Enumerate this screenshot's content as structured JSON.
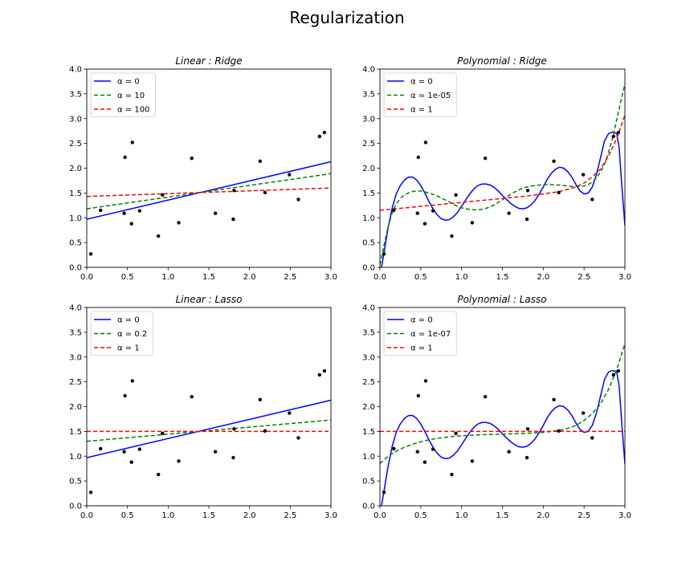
{
  "figure_title": "Regularization",
  "chart_data": [
    {
      "type": "line",
      "title": "Linear : Ridge",
      "xlim": [
        0,
        3
      ],
      "ylim": [
        0,
        4
      ],
      "xticks": [
        "0.0",
        "0.5",
        "1.0",
        "1.5",
        "2.0",
        "2.5",
        "3.0"
      ],
      "yticks": [
        "0.0",
        "0.5",
        "1.0",
        "1.5",
        "2.0",
        "2.5",
        "3.0",
        "3.5",
        "4.0"
      ],
      "grid": false,
      "legend_position": "top-left",
      "scatter": {
        "x": [
          0.05,
          0.17,
          0.46,
          0.47,
          0.55,
          0.56,
          0.65,
          0.88,
          0.93,
          1.13,
          1.29,
          1.58,
          1.8,
          1.81,
          2.13,
          2.19,
          2.49,
          2.6,
          2.86,
          2.92
        ],
        "y": [
          0.27,
          1.15,
          1.09,
          2.22,
          0.88,
          2.52,
          1.14,
          0.63,
          1.46,
          0.9,
          2.2,
          1.09,
          0.97,
          1.55,
          2.14,
          1.51,
          1.87,
          1.37,
          2.64,
          2.72
        ]
      },
      "series": [
        {
          "name": "α = 0",
          "color": "#0000ff",
          "dash": false,
          "x": [
            0,
            3
          ],
          "y": [
            0.97,
            2.13
          ]
        },
        {
          "name": "α = 10",
          "color": "#008000",
          "dash": true,
          "x": [
            0,
            3
          ],
          "y": [
            1.18,
            1.89
          ]
        },
        {
          "name": "α = 100",
          "color": "#ff0000",
          "dash": true,
          "x": [
            0,
            3
          ],
          "y": [
            1.43,
            1.6
          ]
        }
      ]
    },
    {
      "type": "line",
      "title": "Polynomial : Ridge",
      "xlim": [
        0,
        3
      ],
      "ylim": [
        0,
        4
      ],
      "xticks": [
        "0.0",
        "0.5",
        "1.0",
        "1.5",
        "2.0",
        "2.5",
        "3.0"
      ],
      "yticks": [
        "0.0",
        "0.5",
        "1.0",
        "1.5",
        "2.0",
        "2.5",
        "3.0",
        "3.5",
        "4.0"
      ],
      "grid": false,
      "legend_position": "top-left",
      "scatter": {
        "x": [
          0.05,
          0.17,
          0.46,
          0.47,
          0.55,
          0.56,
          0.65,
          0.88,
          0.93,
          1.13,
          1.29,
          1.58,
          1.8,
          1.81,
          2.13,
          2.19,
          2.49,
          2.6,
          2.86,
          2.92
        ],
        "y": [
          0.27,
          1.15,
          1.09,
          2.22,
          0.88,
          2.52,
          1.14,
          0.63,
          1.46,
          0.9,
          2.2,
          1.09,
          0.97,
          1.55,
          2.14,
          1.51,
          1.87,
          1.37,
          2.64,
          2.72
        ]
      },
      "series": [
        {
          "name": "α = 0",
          "color": "#0000ff",
          "dash": false,
          "x": [
            0.0,
            0.05,
            0.1,
            0.15,
            0.2,
            0.25,
            0.3,
            0.35,
            0.4,
            0.45,
            0.5,
            0.55,
            0.6,
            0.65,
            0.7,
            0.75,
            0.8,
            0.85,
            0.9,
            0.95,
            1.0,
            1.05,
            1.1,
            1.15,
            1.2,
            1.25,
            1.3,
            1.35,
            1.4,
            1.45,
            1.5,
            1.55,
            1.6,
            1.65,
            1.7,
            1.75,
            1.8,
            1.85,
            1.9,
            1.95,
            2.0,
            2.05,
            2.1,
            2.15,
            2.2,
            2.25,
            2.3,
            2.35,
            2.4,
            2.45,
            2.5,
            2.55,
            2.6,
            2.65,
            2.7,
            2.75,
            2.8,
            2.85,
            2.9,
            2.93,
            2.96,
            3.0
          ],
          "y": [
            -0.2,
            0.3,
            0.8,
            1.2,
            1.48,
            1.65,
            1.76,
            1.82,
            1.82,
            1.76,
            1.65,
            1.5,
            1.33,
            1.18,
            1.06,
            0.98,
            0.95,
            0.96,
            1.02,
            1.11,
            1.23,
            1.36,
            1.48,
            1.58,
            1.65,
            1.68,
            1.68,
            1.66,
            1.61,
            1.54,
            1.45,
            1.37,
            1.29,
            1.23,
            1.19,
            1.18,
            1.2,
            1.26,
            1.35,
            1.48,
            1.62,
            1.78,
            1.9,
            1.98,
            2.02,
            2.0,
            1.93,
            1.82,
            1.67,
            1.54,
            1.48,
            1.5,
            1.62,
            1.86,
            2.2,
            2.55,
            2.7,
            2.73,
            2.7,
            2.4,
            1.7,
            0.84
          ]
        },
        {
          "name": "α = 1e-05",
          "color": "#008000",
          "dash": true,
          "x": [
            0.0,
            0.05,
            0.1,
            0.15,
            0.2,
            0.25,
            0.3,
            0.35,
            0.4,
            0.45,
            0.5,
            0.55,
            0.6,
            0.65,
            0.7,
            0.75,
            0.8,
            0.85,
            0.9,
            0.95,
            1.0,
            1.05,
            1.1,
            1.15,
            1.2,
            1.25,
            1.3,
            1.35,
            1.4,
            1.45,
            1.5,
            1.55,
            1.6,
            1.65,
            1.7,
            1.75,
            1.8,
            1.85,
            1.9,
            1.95,
            2.0,
            2.05,
            2.1,
            2.15,
            2.2,
            2.25,
            2.3,
            2.35,
            2.4,
            2.45,
            2.5,
            2.55,
            2.6,
            2.65,
            2.7,
            2.75,
            2.8,
            2.85,
            2.9,
            2.95,
            3.0
          ],
          "y": [
            0.05,
            0.45,
            0.82,
            1.1,
            1.28,
            1.39,
            1.46,
            1.5,
            1.53,
            1.54,
            1.54,
            1.52,
            1.5,
            1.47,
            1.44,
            1.4,
            1.36,
            1.32,
            1.27,
            1.23,
            1.2,
            1.18,
            1.17,
            1.16,
            1.16,
            1.17,
            1.19,
            1.22,
            1.26,
            1.31,
            1.36,
            1.42,
            1.47,
            1.52,
            1.56,
            1.6,
            1.62,
            1.64,
            1.65,
            1.66,
            1.67,
            1.67,
            1.67,
            1.66,
            1.66,
            1.65,
            1.64,
            1.63,
            1.63,
            1.63,
            1.64,
            1.67,
            1.72,
            1.8,
            1.92,
            2.08,
            2.32,
            2.62,
            2.98,
            3.35,
            3.7
          ]
        },
        {
          "name": "α = 1",
          "color": "#ff0000",
          "dash": true,
          "x": [
            0.0,
            0.25,
            0.5,
            0.75,
            1.0,
            1.25,
            1.5,
            1.75,
            2.0,
            2.2,
            2.4,
            2.5,
            2.6,
            2.7,
            2.8,
            2.9,
            3.0
          ],
          "y": [
            1.15,
            1.19,
            1.23,
            1.27,
            1.31,
            1.35,
            1.39,
            1.43,
            1.48,
            1.53,
            1.62,
            1.7,
            1.82,
            1.98,
            2.25,
            2.6,
            3.07
          ]
        }
      ]
    },
    {
      "type": "line",
      "title": "Linear : Lasso",
      "xlim": [
        0,
        3
      ],
      "ylim": [
        0,
        4
      ],
      "xticks": [
        "0.0",
        "0.5",
        "1.0",
        "1.5",
        "2.0",
        "2.5",
        "3.0"
      ],
      "yticks": [
        "0.0",
        "0.5",
        "1.0",
        "1.5",
        "2.0",
        "2.5",
        "3.0",
        "3.5",
        "4.0"
      ],
      "grid": false,
      "legend_position": "top-left",
      "scatter": {
        "x": [
          0.05,
          0.17,
          0.46,
          0.47,
          0.55,
          0.56,
          0.65,
          0.88,
          0.93,
          1.13,
          1.29,
          1.58,
          1.8,
          1.81,
          2.13,
          2.19,
          2.49,
          2.6,
          2.86,
          2.92
        ],
        "y": [
          0.27,
          1.15,
          1.09,
          2.22,
          0.88,
          2.52,
          1.14,
          0.63,
          1.46,
          0.9,
          2.2,
          1.09,
          0.97,
          1.55,
          2.14,
          1.51,
          1.87,
          1.37,
          2.64,
          2.72
        ]
      },
      "series": [
        {
          "name": "α = 0",
          "color": "#0000ff",
          "dash": false,
          "x": [
            0,
            3
          ],
          "y": [
            0.97,
            2.13
          ]
        },
        {
          "name": "α = 0.2",
          "color": "#008000",
          "dash": true,
          "x": [
            0,
            3
          ],
          "y": [
            1.3,
            1.73
          ]
        },
        {
          "name": "α = 1",
          "color": "#ff0000",
          "dash": true,
          "x": [
            0,
            3
          ],
          "y": [
            1.5,
            1.5
          ]
        }
      ]
    },
    {
      "type": "line",
      "title": "Polynomial : Lasso",
      "xlim": [
        0,
        3
      ],
      "ylim": [
        0,
        4
      ],
      "xticks": [
        "0.0",
        "0.5",
        "1.0",
        "1.5",
        "2.0",
        "2.5",
        "3.0"
      ],
      "yticks": [
        "0.0",
        "0.5",
        "1.0",
        "1.5",
        "2.0",
        "2.5",
        "3.0",
        "3.5",
        "4.0"
      ],
      "grid": false,
      "legend_position": "top-left",
      "scatter": {
        "x": [
          0.05,
          0.17,
          0.46,
          0.47,
          0.55,
          0.56,
          0.65,
          0.88,
          0.93,
          1.13,
          1.29,
          1.58,
          1.8,
          1.81,
          2.13,
          2.19,
          2.49,
          2.6,
          2.86,
          2.92
        ],
        "y": [
          0.27,
          1.15,
          1.09,
          2.22,
          0.88,
          2.52,
          1.14,
          0.63,
          1.46,
          0.9,
          2.2,
          1.09,
          0.97,
          1.55,
          2.14,
          1.51,
          1.87,
          1.37,
          2.64,
          2.72
        ]
      },
      "series": [
        {
          "name": "α = 0",
          "color": "#0000ff",
          "dash": false,
          "x": [
            0.0,
            0.05,
            0.1,
            0.15,
            0.2,
            0.25,
            0.3,
            0.35,
            0.4,
            0.45,
            0.5,
            0.55,
            0.6,
            0.65,
            0.7,
            0.75,
            0.8,
            0.85,
            0.9,
            0.95,
            1.0,
            1.05,
            1.1,
            1.15,
            1.2,
            1.25,
            1.3,
            1.35,
            1.4,
            1.45,
            1.5,
            1.55,
            1.6,
            1.65,
            1.7,
            1.75,
            1.8,
            1.85,
            1.9,
            1.95,
            2.0,
            2.05,
            2.1,
            2.15,
            2.2,
            2.25,
            2.3,
            2.35,
            2.4,
            2.45,
            2.5,
            2.55,
            2.6,
            2.65,
            2.7,
            2.75,
            2.8,
            2.85,
            2.9,
            2.93,
            2.96,
            3.0
          ],
          "y": [
            -0.2,
            0.3,
            0.8,
            1.2,
            1.48,
            1.65,
            1.76,
            1.82,
            1.82,
            1.76,
            1.65,
            1.5,
            1.33,
            1.18,
            1.06,
            0.98,
            0.95,
            0.96,
            1.02,
            1.11,
            1.23,
            1.36,
            1.48,
            1.58,
            1.65,
            1.68,
            1.68,
            1.66,
            1.61,
            1.54,
            1.45,
            1.37,
            1.29,
            1.23,
            1.19,
            1.18,
            1.2,
            1.26,
            1.35,
            1.48,
            1.62,
            1.78,
            1.9,
            1.98,
            2.02,
            2.0,
            1.93,
            1.82,
            1.67,
            1.54,
            1.48,
            1.5,
            1.62,
            1.86,
            2.2,
            2.55,
            2.7,
            2.73,
            2.7,
            2.4,
            1.7,
            0.84
          ]
        },
        {
          "name": "α = 1e-07",
          "color": "#008000",
          "dash": true,
          "x": [
            0.0,
            0.1,
            0.2,
            0.3,
            0.4,
            0.5,
            0.6,
            0.7,
            0.8,
            0.9,
            1.0,
            1.2,
            1.4,
            1.6,
            1.8,
            2.0,
            2.2,
            2.3,
            2.4,
            2.5,
            2.6,
            2.7,
            2.8,
            2.9,
            3.0
          ],
          "y": [
            0.85,
            1.0,
            1.1,
            1.18,
            1.24,
            1.29,
            1.33,
            1.36,
            1.38,
            1.4,
            1.41,
            1.43,
            1.44,
            1.45,
            1.46,
            1.48,
            1.52,
            1.56,
            1.62,
            1.72,
            1.86,
            2.05,
            2.35,
            2.75,
            3.27
          ]
        },
        {
          "name": "α = 1",
          "color": "#ff0000",
          "dash": true,
          "x": [
            0,
            3
          ],
          "y": [
            1.5,
            1.5
          ]
        }
      ]
    }
  ]
}
